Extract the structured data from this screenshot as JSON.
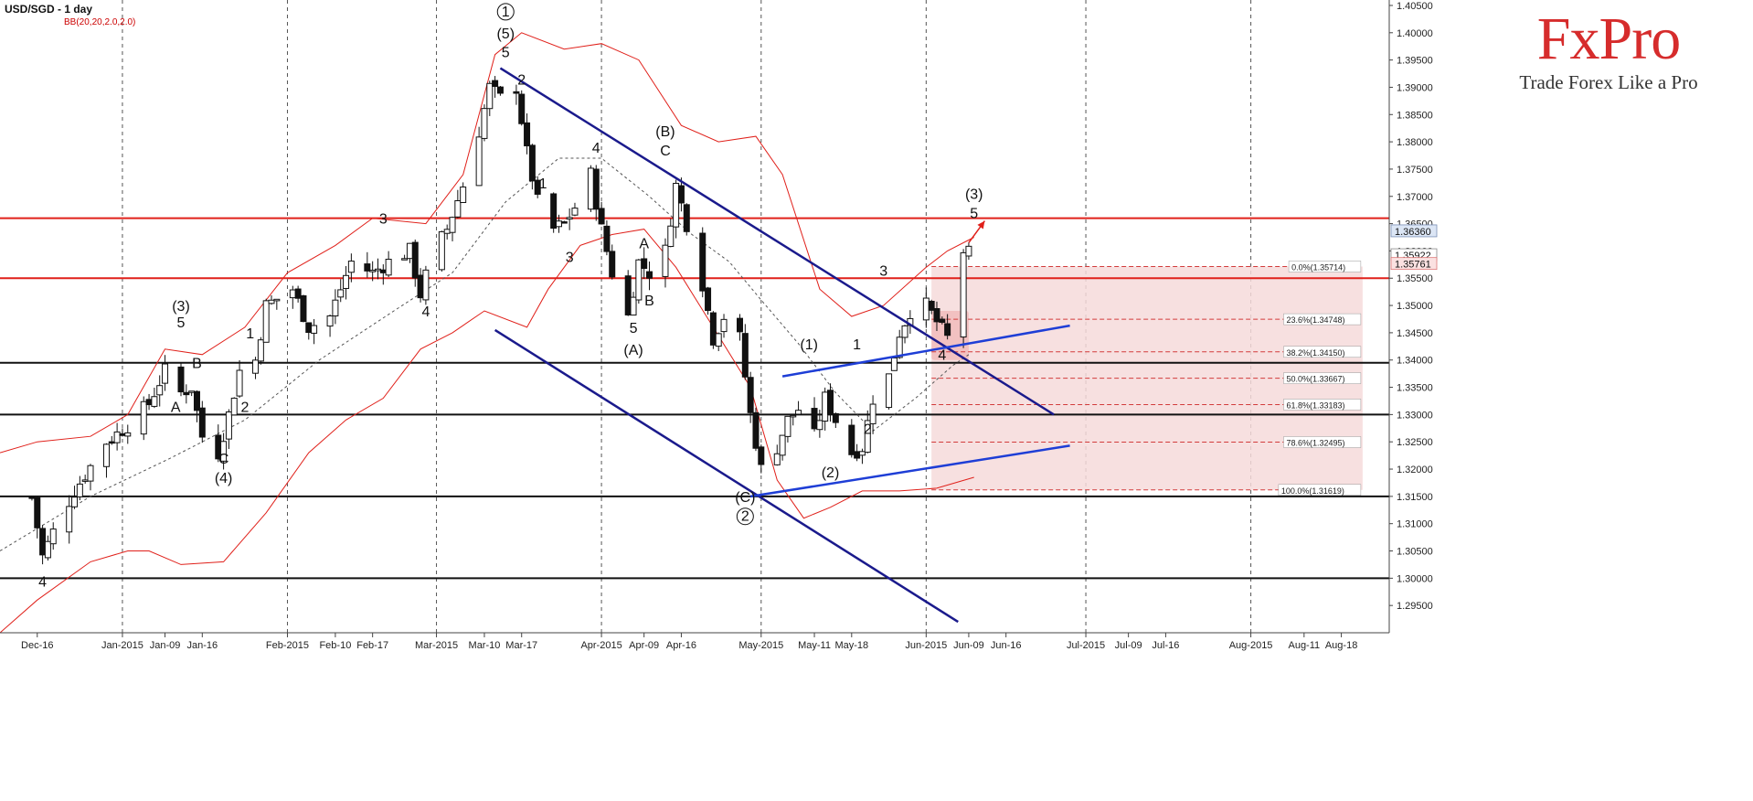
{
  "header": {
    "symbol_title": "USD/SGD - 1 day",
    "indicator": "BB(20,20,2.0,2.0)"
  },
  "logo": {
    "brand": "FxPro",
    "tagline": "Trade Forex Like a Pro",
    "color": "#d62c2c"
  },
  "chart_data": {
    "type": "candlestick",
    "y_range": [
      1.29,
      1.406
    ],
    "y_ticks": [
      "1.40500",
      "1.40000",
      "1.39500",
      "1.39000",
      "1.38500",
      "1.38000",
      "1.37500",
      "1.37000",
      "1.36500",
      "1.36000",
      "1.35500",
      "1.35000",
      "1.34500",
      "1.34000",
      "1.33500",
      "1.33000",
      "1.32500",
      "1.32000",
      "1.31500",
      "1.31000",
      "1.30500",
      "1.30000",
      "1.29500"
    ],
    "x_ticks": [
      {
        "d": "2014-12-16",
        "label": "Dec-16"
      },
      {
        "d": "2015-01-01",
        "label": "Jan-2015"
      },
      {
        "d": "2015-01-09",
        "label": "Jan-09"
      },
      {
        "d": "2015-01-16",
        "label": "Jan-16"
      },
      {
        "d": "2015-02-01",
        "label": "Feb-2015"
      },
      {
        "d": "2015-02-10",
        "label": "Feb-10"
      },
      {
        "d": "2015-02-17",
        "label": "Feb-17"
      },
      {
        "d": "2015-03-01",
        "label": "Mar-2015"
      },
      {
        "d": "2015-03-10",
        "label": "Mar-10"
      },
      {
        "d": "2015-03-17",
        "label": "Mar-17"
      },
      {
        "d": "2015-04-01",
        "label": "Apr-2015"
      },
      {
        "d": "2015-04-09",
        "label": "Apr-09"
      },
      {
        "d": "2015-04-16",
        "label": "Apr-16"
      },
      {
        "d": "2015-05-01",
        "label": "May-2015"
      },
      {
        "d": "2015-05-11",
        "label": "May-11"
      },
      {
        "d": "2015-05-18",
        "label": "May-18"
      },
      {
        "d": "2015-06-01",
        "label": "Jun-2015"
      },
      {
        "d": "2015-06-09",
        "label": "Jun-09"
      },
      {
        "d": "2015-06-16",
        "label": "Jun-16"
      },
      {
        "d": "2015-07-01",
        "label": "Jul-2015"
      },
      {
        "d": "2015-07-09",
        "label": "Jul-09"
      },
      {
        "d": "2015-07-16",
        "label": "Jul-16"
      },
      {
        "d": "2015-08-01",
        "label": "Aug-2015"
      },
      {
        "d": "2015-08-11",
        "label": "Aug-11"
      },
      {
        "d": "2015-08-18",
        "label": "Aug-18"
      }
    ],
    "candle_anchors": [
      [
        "2014-12-15",
        1.3148
      ],
      [
        "2014-12-17",
        1.304
      ],
      [
        "2014-12-19",
        1.3085
      ],
      [
        "2014-12-23",
        1.316
      ],
      [
        "2014-12-29",
        1.325
      ],
      [
        "2015-01-02",
        1.328
      ],
      [
        "2015-01-06",
        1.332
      ],
      [
        "2015-01-09",
        1.338
      ],
      [
        "2015-01-12",
        1.334
      ],
      [
        "2015-01-14",
        1.335
      ],
      [
        "2015-01-16",
        1.326
      ],
      [
        "2015-01-19",
        1.323
      ],
      [
        "2015-01-21",
        1.33
      ],
      [
        "2015-01-23",
        1.338
      ],
      [
        "2015-01-26",
        1.34
      ],
      [
        "2015-01-28",
        1.35
      ],
      [
        "2015-02-02",
        1.353
      ],
      [
        "2015-02-05",
        1.346
      ],
      [
        "2015-02-09",
        1.348
      ],
      [
        "2015-02-11",
        1.353
      ],
      [
        "2015-02-13",
        1.358
      ],
      [
        "2015-02-17",
        1.356
      ],
      [
        "2015-02-20",
        1.358
      ],
      [
        "2015-02-24",
        1.36
      ],
      [
        "2015-02-26",
        1.352
      ],
      [
        "2015-02-28",
        1.359
      ],
      [
        "2015-03-03",
        1.364
      ],
      [
        "2015-03-06",
        1.372
      ],
      [
        "2015-03-09",
        1.382
      ],
      [
        "2015-03-11",
        1.39
      ],
      [
        "2015-03-13",
        1.388
      ],
      [
        "2015-03-16",
        1.39
      ],
      [
        "2015-03-18",
        1.378
      ],
      [
        "2015-03-20",
        1.369
      ],
      [
        "2015-03-23",
        1.364
      ],
      [
        "2015-03-25",
        1.365
      ],
      [
        "2015-03-27",
        1.368
      ],
      [
        "2015-03-30",
        1.374
      ],
      [
        "2015-04-01",
        1.364
      ],
      [
        "2015-04-03",
        1.356
      ],
      [
        "2015-04-06",
        1.348
      ],
      [
        "2015-04-08",
        1.358
      ],
      [
        "2015-04-10",
        1.356
      ],
      [
        "2015-04-13",
        1.36
      ],
      [
        "2015-04-15",
        1.372
      ],
      [
        "2015-04-17",
        1.365
      ],
      [
        "2015-04-20",
        1.354
      ],
      [
        "2015-04-22",
        1.344
      ],
      [
        "2015-04-24",
        1.348
      ],
      [
        "2015-04-27",
        1.344
      ],
      [
        "2015-04-29",
        1.33
      ],
      [
        "2015-05-01",
        1.32
      ],
      [
        "2015-05-04",
        1.324
      ],
      [
        "2015-05-06",
        1.329
      ],
      [
        "2015-05-08",
        1.331
      ],
      [
        "2015-05-11",
        1.326
      ],
      [
        "2015-05-13",
        1.333
      ],
      [
        "2015-05-15",
        1.329
      ],
      [
        "2015-05-18",
        1.323
      ],
      [
        "2015-05-20",
        1.324
      ],
      [
        "2015-05-22",
        1.333
      ],
      [
        "2015-05-25",
        1.337
      ],
      [
        "2015-05-27",
        1.345
      ],
      [
        "2015-05-29",
        1.349
      ],
      [
        "2015-06-01",
        1.35
      ],
      [
        "2015-06-03",
        1.347
      ],
      [
        "2015-06-05",
        1.344
      ],
      [
        "2015-06-08",
        1.36
      ],
      [
        "2015-06-09",
        1.3595
      ]
    ],
    "bb_upper": [
      [
        "2014-12-09",
        1.323
      ],
      [
        "2014-12-16",
        1.325
      ],
      [
        "2014-12-26",
        1.326
      ],
      [
        "2015-01-02",
        1.33
      ],
      [
        "2015-01-09",
        1.342
      ],
      [
        "2015-01-16",
        1.341
      ],
      [
        "2015-01-24",
        1.346
      ],
      [
        "2015-02-01",
        1.356
      ],
      [
        "2015-02-10",
        1.361
      ],
      [
        "2015-02-17",
        1.366
      ],
      [
        "2015-02-27",
        1.365
      ],
      [
        "2015-03-06",
        1.374
      ],
      [
        "2015-03-12",
        1.396
      ],
      [
        "2015-03-17",
        1.4
      ],
      [
        "2015-03-25",
        1.397
      ],
      [
        "2015-04-01",
        1.398
      ],
      [
        "2015-04-08",
        1.395
      ],
      [
        "2015-04-16",
        1.383
      ],
      [
        "2015-04-23",
        1.38
      ],
      [
        "2015-04-30",
        1.381
      ],
      [
        "2015-05-05",
        1.374
      ],
      [
        "2015-05-12",
        1.353
      ],
      [
        "2015-05-18",
        1.348
      ],
      [
        "2015-05-24",
        1.35
      ],
      [
        "2015-06-01",
        1.357
      ],
      [
        "2015-06-05",
        1.36
      ],
      [
        "2015-06-10",
        1.3625
      ]
    ],
    "bb_lower": [
      [
        "2014-12-09",
        1.29
      ],
      [
        "2014-12-16",
        1.296
      ],
      [
        "2014-12-26",
        1.303
      ],
      [
        "2015-01-02",
        1.305
      ],
      [
        "2015-01-06",
        1.305
      ],
      [
        "2015-01-12",
        1.3025
      ],
      [
        "2015-01-20",
        1.303
      ],
      [
        "2015-01-28",
        1.312
      ],
      [
        "2015-02-05",
        1.323
      ],
      [
        "2015-02-12",
        1.329
      ],
      [
        "2015-02-19",
        1.333
      ],
      [
        "2015-02-26",
        1.342
      ],
      [
        "2015-03-04",
        1.345
      ],
      [
        "2015-03-10",
        1.349
      ],
      [
        "2015-03-18",
        1.346
      ],
      [
        "2015-03-22",
        1.353
      ],
      [
        "2015-03-28",
        1.361
      ],
      [
        "2015-04-03",
        1.363
      ],
      [
        "2015-04-09",
        1.364
      ],
      [
        "2015-04-15",
        1.357
      ],
      [
        "2015-04-22",
        1.346
      ],
      [
        "2015-04-29",
        1.335
      ],
      [
        "2015-05-04",
        1.318
      ],
      [
        "2015-05-09",
        1.311
      ],
      [
        "2015-05-14",
        1.313
      ],
      [
        "2015-05-20",
        1.316
      ],
      [
        "2015-05-27",
        1.316
      ],
      [
        "2015-06-03",
        1.3165
      ],
      [
        "2015-06-10",
        1.3185
      ]
    ],
    "bb_mid": [
      [
        "2014-12-09",
        1.305
      ],
      [
        "2014-12-26",
        1.315
      ],
      [
        "2015-01-10",
        1.322
      ],
      [
        "2015-01-24",
        1.329
      ],
      [
        "2015-02-07",
        1.34
      ],
      [
        "2015-02-21",
        1.349
      ],
      [
        "2015-03-04",
        1.356
      ],
      [
        "2015-03-14",
        1.369
      ],
      [
        "2015-03-24",
        1.377
      ],
      [
        "2015-04-01",
        1.377
      ],
      [
        "2015-04-10",
        1.37
      ],
      [
        "2015-04-18",
        1.363
      ],
      [
        "2015-04-25",
        1.358
      ],
      [
        "2015-05-01",
        1.351
      ],
      [
        "2015-05-08",
        1.343
      ],
      [
        "2015-05-15",
        1.334
      ],
      [
        "2015-05-22",
        1.327
      ],
      [
        "2015-05-30",
        1.333
      ],
      [
        "2015-06-06",
        1.339
      ],
      [
        "2015-06-09",
        1.341
      ]
    ],
    "horizontal_levels": [
      {
        "value": 1.366,
        "color": "#e0201a",
        "width": 2
      },
      {
        "value": 1.355,
        "color": "#e0201a",
        "width": 2
      },
      {
        "value": 1.3395,
        "color": "#111111",
        "width": 2
      },
      {
        "value": 1.33,
        "color": "#111111",
        "width": 2
      },
      {
        "value": 1.315,
        "color": "#111111",
        "width": 2
      },
      {
        "value": 1.3,
        "color": "#111111",
        "width": 2
      }
    ],
    "trend_lines": [
      {
        "from": [
          "2015-03-13",
          1.3935
        ],
        "to": [
          "2015-06-25",
          1.33
        ],
        "color": "#1a1a8c"
      },
      {
        "from": [
          "2015-03-12",
          1.3455
        ],
        "to": [
          "2015-06-07",
          1.292
        ],
        "color": "#1a1a8c"
      },
      {
        "from": [
          "2015-05-05",
          1.337
        ],
        "to": [
          "2015-06-28",
          1.3463
        ],
        "color": "#1e3ed6"
      },
      {
        "from": [
          "2015-04-29",
          1.315
        ],
        "to": [
          "2015-06-28",
          1.3243
        ],
        "color": "#1e3ed6"
      }
    ],
    "fib_zone": {
      "x_from": "2015-06-02",
      "x_to": "2015-08-22",
      "top": 1.35714,
      "bottom": 1.31619,
      "fill": "#f6dada"
    },
    "fib_levels": [
      {
        "value": 1.35714,
        "label": "0.0%(1.35714)"
      },
      {
        "value": 1.34748,
        "label": "23.6%(1.34748)"
      },
      {
        "value": 1.3415,
        "label": "38.2%(1.34150)"
      },
      {
        "value": 1.33667,
        "label": "50.0%(1.33667)"
      },
      {
        "value": 1.33183,
        "label": "61.8%(1.33183)"
      },
      {
        "value": 1.32495,
        "label": "78.6%(1.32495)"
      },
      {
        "value": 1.31619,
        "label": "100.0%(1.31619)"
      }
    ],
    "price_tags": [
      {
        "value": 1.3636,
        "label": "1.36360",
        "style": "blue"
      },
      {
        "value": 1.35922,
        "label": "1.35922",
        "style": "plain"
      },
      {
        "value": 1.35761,
        "label": "1.35761",
        "style": "red"
      }
    ],
    "arrow": {
      "from": [
        "2015-06-09",
        1.3615
      ],
      "to": [
        "2015-06-12",
        1.3655
      ],
      "color": "#e0201a"
    },
    "wave_labels": [
      {
        "d": "2014-12-17",
        "y": 1.2985,
        "t": "4",
        "c": false
      },
      {
        "d": "2015-01-12",
        "y": 1.346,
        "t": "5",
        "c": false
      },
      {
        "d": "2015-01-12",
        "y": 1.349,
        "t": "(3)",
        "c": false
      },
      {
        "d": "2015-01-15",
        "y": 1.3385,
        "t": "B",
        "c": false
      },
      {
        "d": "2015-01-11",
        "y": 1.3305,
        "t": "A",
        "c": false
      },
      {
        "d": "2015-01-20",
        "y": 1.321,
        "t": "C",
        "c": false
      },
      {
        "d": "2015-01-20",
        "y": 1.3175,
        "t": "(4)",
        "c": false
      },
      {
        "d": "2015-01-24",
        "y": 1.3305,
        "t": "2",
        "c": false
      },
      {
        "d": "2015-01-25",
        "y": 1.344,
        "t": "1",
        "c": false
      },
      {
        "d": "2015-02-19",
        "y": 1.365,
        "t": "3",
        "c": false
      },
      {
        "d": "2015-02-27",
        "y": 1.348,
        "t": "4",
        "c": false
      },
      {
        "d": "2015-03-14",
        "y": 1.403,
        "t": "1",
        "c": true
      },
      {
        "d": "2015-03-14",
        "y": 1.399,
        "t": "(5)",
        "c": false
      },
      {
        "d": "2015-03-14",
        "y": 1.3955,
        "t": "5",
        "c": false
      },
      {
        "d": "2015-03-17",
        "y": 1.3905,
        "t": "2",
        "c": false
      },
      {
        "d": "2015-03-21",
        "y": 1.3715,
        "t": "1",
        "c": false
      },
      {
        "d": "2015-03-31",
        "y": 1.378,
        "t": "4",
        "c": false
      },
      {
        "d": "2015-03-26",
        "y": 1.358,
        "t": "3",
        "c": false
      },
      {
        "d": "2015-04-09",
        "y": 1.3605,
        "t": "A",
        "c": false
      },
      {
        "d": "2015-04-10",
        "y": 1.35,
        "t": "B",
        "c": false
      },
      {
        "d": "2015-04-13",
        "y": 1.381,
        "t": "(B)",
        "c": false
      },
      {
        "d": "2015-04-13",
        "y": 1.3775,
        "t": "C",
        "c": false
      },
      {
        "d": "2015-04-07",
        "y": 1.345,
        "t": "5",
        "c": false
      },
      {
        "d": "2015-04-07",
        "y": 1.341,
        "t": "(A)",
        "c": false
      },
      {
        "d": "2015-04-28",
        "y": 1.314,
        "t": "(C)",
        "c": false
      },
      {
        "d": "2015-04-28",
        "y": 1.3105,
        "t": "2",
        "c": true
      },
      {
        "d": "2015-05-10",
        "y": 1.342,
        "t": "(1)",
        "c": false
      },
      {
        "d": "2015-05-19",
        "y": 1.342,
        "t": "1",
        "c": false
      },
      {
        "d": "2015-05-14",
        "y": 1.3185,
        "t": "(2)",
        "c": false
      },
      {
        "d": "2015-05-21",
        "y": 1.3265,
        "t": "2",
        "c": false
      },
      {
        "d": "2015-05-24",
        "y": 1.3555,
        "t": "3",
        "c": false
      },
      {
        "d": "2015-06-04",
        "y": 1.34,
        "t": "4",
        "c": false
      },
      {
        "d": "2015-06-10",
        "y": 1.3695,
        "t": "(3)",
        "c": false
      },
      {
        "d": "2015-06-10",
        "y": 1.366,
        "t": "5",
        "c": false
      }
    ]
  }
}
